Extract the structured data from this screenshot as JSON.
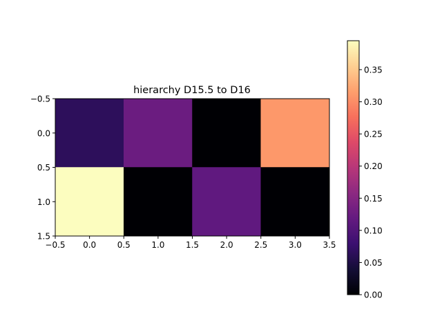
{
  "chart_data": {
    "type": "heatmap",
    "title": "hierarchy D15.5 to D16",
    "xlabel": "",
    "ylabel": "",
    "rows": 2,
    "cols": 4,
    "values": [
      [
        0.065,
        0.125,
        0.0,
        0.31
      ],
      [
        0.395,
        0.0,
        0.115,
        0.0
      ]
    ],
    "xlim": [
      -0.5,
      3.5
    ],
    "ylim": [
      1.5,
      -0.5
    ],
    "x_ticks": [
      "−0.5",
      "0.0",
      "0.5",
      "1.0",
      "1.5",
      "2.0",
      "2.5",
      "3.0",
      "3.5"
    ],
    "x_tick_values": [
      -0.5,
      0.0,
      0.5,
      1.0,
      1.5,
      2.0,
      2.5,
      3.0,
      3.5
    ],
    "y_ticks": [
      "−0.5",
      "0.0",
      "0.5",
      "1.0",
      "1.5"
    ],
    "y_tick_values": [
      -0.5,
      0.0,
      0.5,
      1.0,
      1.5
    ],
    "colormap": "magma",
    "colorbar": {
      "range": [
        0.0,
        0.395
      ],
      "ticks": [
        "0.00",
        "0.05",
        "0.10",
        "0.15",
        "0.20",
        "0.25",
        "0.30",
        "0.35"
      ],
      "tick_values": [
        0.0,
        0.05,
        0.1,
        0.15,
        0.2,
        0.25,
        0.3,
        0.35
      ]
    },
    "grid": false,
    "legend": "none"
  }
}
